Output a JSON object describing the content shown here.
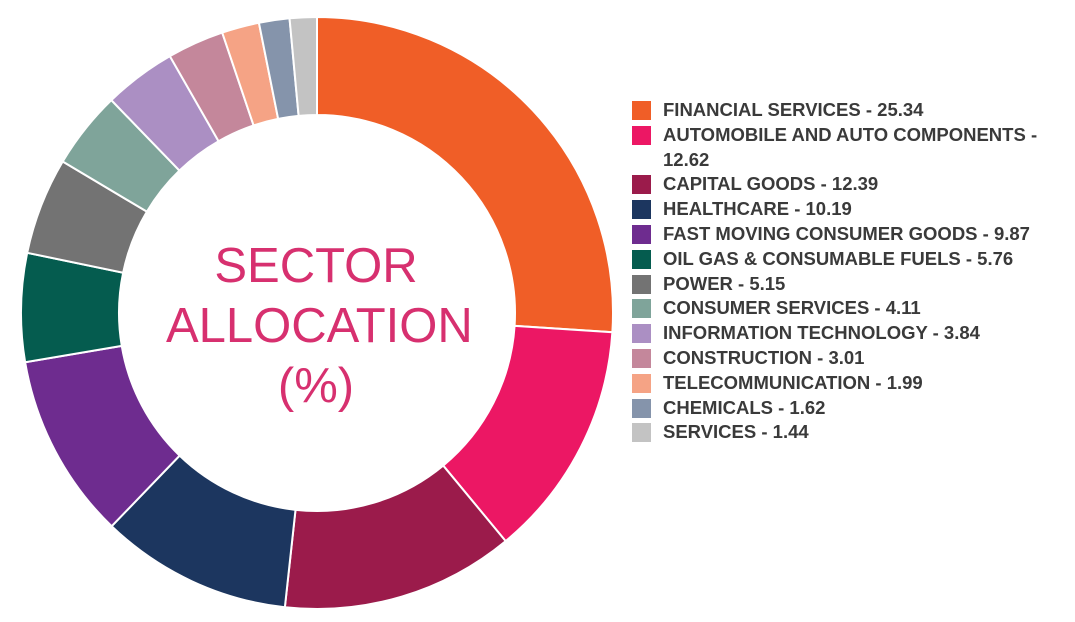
{
  "chart_data": {
    "type": "pie",
    "title_lines": [
      "SECTOR",
      "ALLOCATION",
      "(%)"
    ],
    "slices": [
      {
        "label": "FINANCIAL SERVICES - 25.34",
        "value": 25.34,
        "color": "#f05e27"
      },
      {
        "label": "AUTOMOBILE AND AUTO COMPONENTS - 12.62",
        "value": 12.62,
        "color": "#ec1764"
      },
      {
        "label": "CAPITAL GOODS - 12.39",
        "value": 12.39,
        "color": "#9b1b4b"
      },
      {
        "label": "HEALTHCARE - 10.19",
        "value": 10.19,
        "color": "#1c365f"
      },
      {
        "label": "FAST MOVING CONSUMER GOODS - 9.87",
        "value": 9.87,
        "color": "#6e2c8f"
      },
      {
        "label": "OIL GAS & CONSUMABLE FUELS - 5.76",
        "value": 5.76,
        "color": "#055c4f"
      },
      {
        "label": "POWER - 5.15",
        "value": 5.15,
        "color": "#737373"
      },
      {
        "label": "CONSUMER SERVICES - 4.11",
        "value": 4.11,
        "color": "#7fa49a"
      },
      {
        "label": "INFORMATION TECHNOLOGY - 3.84",
        "value": 3.84,
        "color": "#ab8fc3"
      },
      {
        "label": "CONSTRUCTION - 3.01",
        "value": 3.01,
        "color": "#c4879b"
      },
      {
        "label": "TELECOMMUNICATION - 1.99",
        "value": 1.99,
        "color": "#f5a385"
      },
      {
        "label": "CHEMICALS - 1.62",
        "value": 1.62,
        "color": "#8594ab"
      },
      {
        "label": "SERVICES - 1.44",
        "value": 1.44,
        "color": "#c3c3c3"
      }
    ]
  }
}
